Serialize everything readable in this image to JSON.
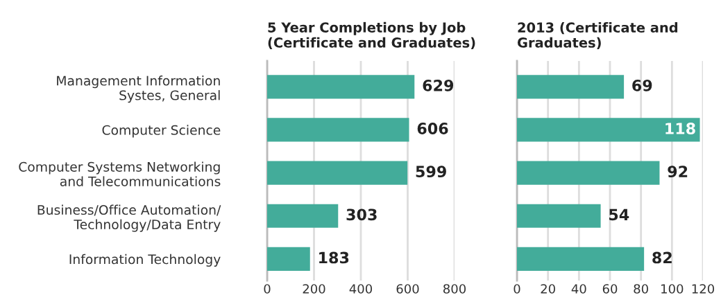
{
  "chart_data": [
    {
      "type": "bar",
      "orientation": "horizontal",
      "title": "5 Year Completions by Job\n(Certificate and Graduates)",
      "categories": [
        "Management Information\nSystes, General",
        "Computer Science",
        "Computer Systems Networking\nand Telecommunications",
        "Business/Office Automation/\nTechnology/Data Entry",
        "Information Technology"
      ],
      "values": [
        629,
        606,
        599,
        303,
        183
      ],
      "color": "#43ac9a",
      "xlim": [
        0,
        800
      ],
      "xticks": [
        0,
        200,
        400,
        600,
        800
      ],
      "grid": "x",
      "data_labels": true
    },
    {
      "type": "bar",
      "orientation": "horizontal",
      "title": "2013 (Certificate and\nGraduates)",
      "categories": [
        null,
        null,
        null,
        null,
        null
      ],
      "values": [
        69,
        118,
        92,
        54,
        82
      ],
      "color": "#43ac9a",
      "xlim": [
        0,
        120
      ],
      "xticks": [
        0,
        20,
        40,
        60,
        80,
        100,
        120
      ],
      "grid": "x",
      "data_labels": true,
      "tick_labels": "x"
    }
  ]
}
